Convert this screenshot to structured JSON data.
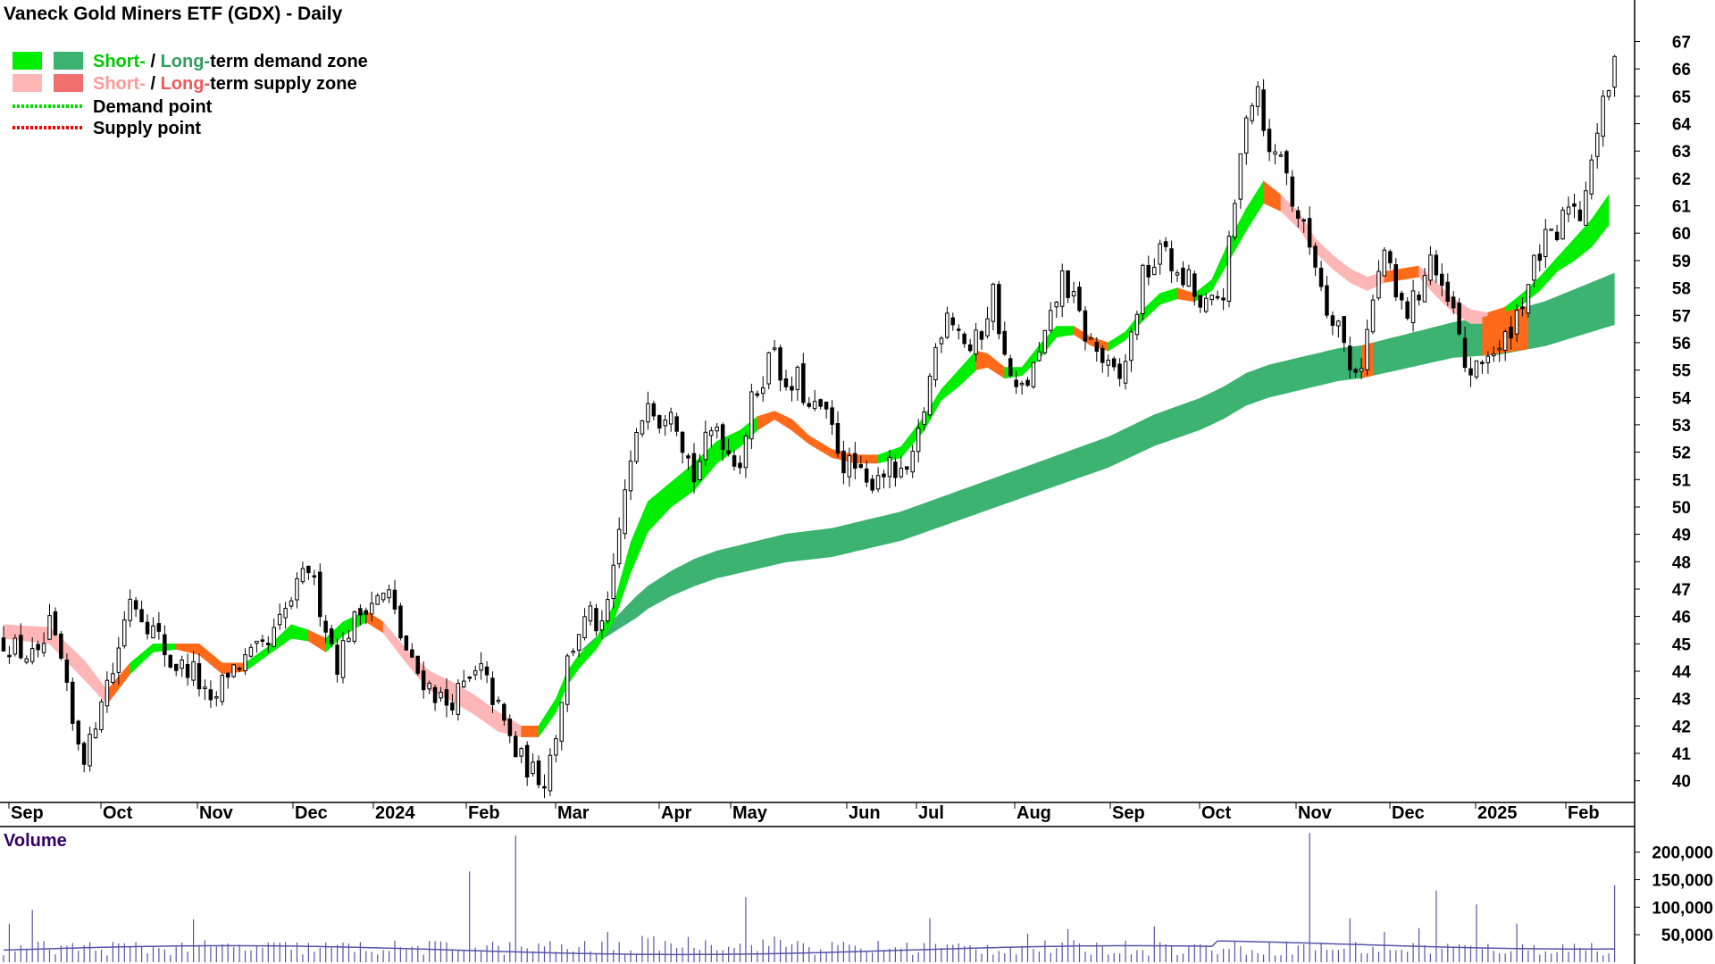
{
  "title": "Vaneck Gold Miners ETF (GDX) - Daily",
  "legend": {
    "short_prefix": "Short-",
    "slash": " / ",
    "long_prefix": "Long-",
    "demand_suffix": "term demand zone",
    "supply_suffix": "term supply zone",
    "demand_point": "Demand point",
    "supply_point": "Supply point"
  },
  "colors": {
    "short_demand": "#00ee00",
    "long_demand": "#3cb371",
    "short_supply": "#ffb6b6",
    "long_supply": "#f07070",
    "zone_orange": "#ff6a1a",
    "supply_point": "#ff0000",
    "volume": "#5555aa"
  },
  "volume_panel": {
    "title": "Volume",
    "ticks": [
      "200,000",
      "150,000",
      "100,000",
      "50,000"
    ],
    "tick_values": [
      200000,
      150000,
      100000,
      50000
    ],
    "max": 240000
  },
  "chart_data": {
    "type": "candlestick",
    "title": "Vaneck Gold Miners ETF (GDX) - Daily",
    "ylim": [
      39.5,
      67.8
    ],
    "y_ticks": [
      40,
      41,
      42,
      43,
      44,
      45,
      46,
      47,
      48,
      49,
      50,
      51,
      52,
      53,
      54,
      55,
      56,
      57,
      58,
      59,
      60,
      61,
      62,
      63,
      64,
      65,
      66,
      67
    ],
    "month_labels": [
      "Sep",
      "Oct",
      "Nov",
      "Dec",
      "2024",
      "Feb",
      "Mar",
      "Apr",
      "May",
      "Jun",
      "Jul",
      "Aug",
      "Sep",
      "Oct",
      "Nov",
      "Dec",
      "2025",
      "Feb"
    ],
    "close_path": [
      [
        0,
        45.1
      ],
      [
        3,
        44.7
      ],
      [
        6,
        44.4
      ],
      [
        8,
        45.6
      ],
      [
        10,
        44.3
      ],
      [
        12,
        42.0
      ],
      [
        14,
        41.0
      ],
      [
        15,
        41.3
      ],
      [
        17,
        43.2
      ],
      [
        19,
        44.0
      ],
      [
        22,
        46.8
      ],
      [
        25,
        45.8
      ],
      [
        27,
        45.2
      ],
      [
        29,
        44.3
      ],
      [
        33,
        44.0
      ],
      [
        36,
        42.6
      ],
      [
        39,
        44.0
      ],
      [
        42,
        44.4
      ],
      [
        46,
        44.9
      ],
      [
        50,
        46.6
      ],
      [
        53,
        47.8
      ],
      [
        56,
        45.7
      ],
      [
        58,
        44.3
      ],
      [
        60,
        45.5
      ],
      [
        63,
        46.5
      ],
      [
        67,
        46.8
      ],
      [
        69,
        45.3
      ],
      [
        71,
        44.2
      ],
      [
        73,
        43.7
      ],
      [
        75,
        43.2
      ],
      [
        77,
        42.8
      ],
      [
        80,
        43.4
      ],
      [
        83,
        44.0
      ],
      [
        86,
        42.6
      ],
      [
        89,
        41.0
      ],
      [
        92,
        40.3
      ],
      [
        94,
        40.1
      ],
      [
        96,
        41.8
      ],
      [
        98,
        44.4
      ],
      [
        100,
        45.5
      ],
      [
        102,
        46.0
      ],
      [
        104,
        45.4
      ],
      [
        106,
        47.5
      ],
      [
        108,
        50.6
      ],
      [
        110,
        52.4
      ],
      [
        112,
        54.2
      ],
      [
        114,
        53.2
      ],
      [
        116,
        53.9
      ],
      [
        118,
        52.4
      ],
      [
        120,
        51.1
      ],
      [
        122,
        52.3
      ],
      [
        124,
        53.0
      ],
      [
        126,
        52.0
      ],
      [
        128,
        51.7
      ],
      [
        130,
        53.8
      ],
      [
        132,
        54.8
      ],
      [
        134,
        56.0
      ],
      [
        136,
        54.0
      ],
      [
        138,
        54.7
      ],
      [
        140,
        53.5
      ],
      [
        142,
        53.6
      ],
      [
        144,
        52.8
      ],
      [
        146,
        51.6
      ],
      [
        148,
        51.4
      ],
      [
        150,
        50.7
      ],
      [
        152,
        51.3
      ],
      [
        154,
        51.4
      ],
      [
        156,
        51.0
      ],
      [
        158,
        51.6
      ],
      [
        160,
        53.6
      ],
      [
        162,
        55.8
      ],
      [
        164,
        57.3
      ],
      [
        166,
        56.5
      ],
      [
        168,
        55.7
      ],
      [
        170,
        56.4
      ],
      [
        172,
        57.9
      ],
      [
        174,
        55.4
      ],
      [
        176,
        54.1
      ],
      [
        178,
        54.6
      ],
      [
        180,
        55.5
      ],
      [
        182,
        56.8
      ],
      [
        184,
        58.4
      ],
      [
        186,
        57.5
      ],
      [
        188,
        56.3
      ],
      [
        190,
        55.7
      ],
      [
        192,
        55.0
      ],
      [
        194,
        54.6
      ],
      [
        196,
        56.2
      ],
      [
        198,
        58.4
      ],
      [
        200,
        58.9
      ],
      [
        202,
        59.6
      ],
      [
        204,
        58.2
      ],
      [
        206,
        58.3
      ],
      [
        208,
        57.2
      ],
      [
        210,
        57.4
      ],
      [
        212,
        57.9
      ],
      [
        214,
        61.0
      ],
      [
        216,
        64.5
      ],
      [
        218,
        65.4
      ],
      [
        220,
        62.8
      ],
      [
        222,
        63.0
      ],
      [
        224,
        61.2
      ],
      [
        226,
        60.1
      ],
      [
        228,
        59.0
      ],
      [
        230,
        57.3
      ],
      [
        232,
        56.8
      ],
      [
        234,
        55.0
      ],
      [
        236,
        55.3
      ],
      [
        238,
        57.5
      ],
      [
        240,
        59.4
      ],
      [
        242,
        57.6
      ],
      [
        244,
        57.1
      ],
      [
        246,
        57.9
      ],
      [
        248,
        59.2
      ],
      [
        250,
        57.7
      ],
      [
        252,
        57.1
      ],
      [
        254,
        55.1
      ],
      [
        256,
        54.9
      ],
      [
        258,
        55.7
      ],
      [
        260,
        55.6
      ],
      [
        262,
        56.6
      ],
      [
        264,
        57.6
      ],
      [
        266,
        58.8
      ],
      [
        268,
        59.7
      ],
      [
        270,
        59.8
      ],
      [
        272,
        61.2
      ],
      [
        274,
        60.7
      ],
      [
        276,
        62.9
      ],
      [
        278,
        64.6
      ],
      [
        280,
        66.1
      ]
    ],
    "short_term_zone": [
      [
        0,
        45.7,
        45.2,
        "s"
      ],
      [
        8,
        45.6,
        45.0,
        "s"
      ],
      [
        14,
        44.4,
        43.7,
        "s"
      ],
      [
        18,
        43.3,
        42.8,
        "s"
      ],
      [
        22,
        44.3,
        43.9,
        "s"
      ],
      [
        26,
        45.0,
        44.7,
        "d"
      ],
      [
        30,
        45.0,
        44.8,
        "d"
      ],
      [
        34,
        45.0,
        44.6,
        "s"
      ],
      [
        38,
        44.3,
        43.9,
        "s"
      ],
      [
        42,
        44.3,
        44.0,
        "s"
      ],
      [
        46,
        44.9,
        44.6,
        "d"
      ],
      [
        50,
        45.7,
        45.2,
        "d"
      ],
      [
        53,
        45.5,
        45.1,
        "d"
      ],
      [
        56,
        45.2,
        44.7,
        "s"
      ],
      [
        59,
        45.8,
        45.3,
        "d"
      ],
      [
        63,
        46.2,
        45.8,
        "d"
      ],
      [
        66,
        45.8,
        45.4,
        "s"
      ],
      [
        70,
        44.8,
        44.3,
        "s"
      ],
      [
        74,
        44.0,
        43.3,
        "s"
      ],
      [
        78,
        43.6,
        42.9,
        "s"
      ],
      [
        82,
        43.1,
        42.4,
        "s"
      ],
      [
        86,
        42.5,
        41.8,
        "s"
      ],
      [
        90,
        42.0,
        41.6,
        "s"
      ],
      [
        93,
        42.0,
        41.6,
        "s"
      ],
      [
        96,
        43.0,
        42.5,
        "d"
      ],
      [
        98,
        44.0,
        43.5,
        "d"
      ],
      [
        100,
        44.6,
        44.1,
        "d"
      ],
      [
        103,
        45.2,
        44.8,
        "d"
      ],
      [
        106,
        46.4,
        45.8,
        "d"
      ],
      [
        109,
        48.7,
        47.6,
        "d"
      ],
      [
        112,
        50.2,
        49.1,
        "d"
      ],
      [
        116,
        50.9,
        50.0,
        "d"
      ],
      [
        120,
        51.6,
        50.6,
        "d"
      ],
      [
        124,
        52.4,
        51.6,
        "d"
      ],
      [
        128,
        52.8,
        52.2,
        "d"
      ],
      [
        131,
        53.3,
        52.8,
        "d"
      ],
      [
        134,
        53.5,
        53.2,
        "s"
      ],
      [
        137,
        53.2,
        52.8,
        "s"
      ],
      [
        140,
        52.6,
        52.3,
        "s"
      ],
      [
        144,
        52.1,
        51.8,
        "s"
      ],
      [
        148,
        51.9,
        51.6,
        "s"
      ],
      [
        152,
        51.9,
        51.6,
        "s"
      ],
      [
        156,
        52.2,
        51.8,
        "d"
      ],
      [
        160,
        53.3,
        52.8,
        "d"
      ],
      [
        163,
        54.3,
        53.9,
        "d"
      ],
      [
        166,
        55.0,
        54.4,
        "d"
      ],
      [
        169,
        55.7,
        55.0,
        "d"
      ],
      [
        171,
        55.6,
        55.1,
        "s"
      ],
      [
        174,
        55.1,
        54.7,
        "s"
      ],
      [
        177,
        55.1,
        54.8,
        "d"
      ],
      [
        180,
        55.9,
        55.4,
        "d"
      ],
      [
        183,
        56.6,
        56.2,
        "d"
      ],
      [
        186,
        56.6,
        56.3,
        "d"
      ],
      [
        189,
        56.2,
        55.9,
        "s"
      ],
      [
        192,
        56.0,
        55.7,
        "s"
      ],
      [
        195,
        56.4,
        56.1,
        "d"
      ],
      [
        198,
        57.2,
        56.8,
        "d"
      ],
      [
        201,
        57.8,
        57.4,
        "d"
      ],
      [
        204,
        58.0,
        57.6,
        "d"
      ],
      [
        207,
        57.8,
        57.5,
        "s"
      ],
      [
        210,
        58.3,
        57.9,
        "d"
      ],
      [
        213,
        59.7,
        59.0,
        "d"
      ],
      [
        216,
        60.9,
        60.1,
        "d"
      ],
      [
        219,
        61.9,
        61.1,
        "d"
      ],
      [
        222,
        61.4,
        60.8,
        "s"
      ],
      [
        225,
        60.8,
        60.2,
        "s"
      ],
      [
        228,
        59.8,
        59.3,
        "s"
      ],
      [
        231,
        59.2,
        58.7,
        "s"
      ],
      [
        234,
        58.7,
        58.2,
        "s"
      ],
      [
        237,
        58.4,
        57.9,
        "s"
      ],
      [
        240,
        58.6,
        58.2,
        "s"
      ],
      [
        243,
        58.7,
        58.3,
        "s"
      ],
      [
        246,
        58.8,
        58.4,
        "s"
      ],
      [
        249,
        58.2,
        57.7,
        "s"
      ],
      [
        252,
        57.6,
        57.1,
        "s"
      ],
      [
        255,
        57.2,
        56.7,
        "s"
      ],
      [
        258,
        57.1,
        56.7,
        "s"
      ],
      [
        261,
        57.3,
        56.9,
        "s"
      ],
      [
        264,
        57.8,
        57.4,
        "d"
      ],
      [
        267,
        58.4,
        57.9,
        "d"
      ],
      [
        270,
        59.1,
        58.6,
        "d"
      ],
      [
        273,
        59.8,
        59.0,
        "d"
      ],
      [
        276,
        60.5,
        59.5,
        "d"
      ],
      [
        279,
        61.4,
        60.3,
        "d"
      ]
    ],
    "long_term_zone": [
      [
        100,
        44.7
      ],
      [
        104,
        45.3
      ],
      [
        108,
        46.0
      ],
      [
        112,
        46.7
      ],
      [
        116,
        47.2
      ],
      [
        120,
        47.6
      ],
      [
        124,
        47.9
      ],
      [
        128,
        48.1
      ],
      [
        132,
        48.3
      ],
      [
        136,
        48.5
      ],
      [
        140,
        48.6
      ],
      [
        144,
        48.7
      ],
      [
        148,
        48.9
      ],
      [
        152,
        49.1
      ],
      [
        156,
        49.3
      ],
      [
        160,
        49.6
      ],
      [
        164,
        49.9
      ],
      [
        168,
        50.2
      ],
      [
        172,
        50.5
      ],
      [
        176,
        50.8
      ],
      [
        180,
        51.1
      ],
      [
        184,
        51.4
      ],
      [
        188,
        51.7
      ],
      [
        192,
        52.0
      ],
      [
        196,
        52.4
      ],
      [
        200,
        52.8
      ],
      [
        204,
        53.1
      ],
      [
        208,
        53.4
      ],
      [
        212,
        53.8
      ],
      [
        216,
        54.3
      ],
      [
        220,
        54.6
      ],
      [
        224,
        54.8
      ],
      [
        228,
        55.0
      ],
      [
        232,
        55.2
      ],
      [
        236,
        55.3
      ],
      [
        240,
        55.5
      ],
      [
        244,
        55.7
      ],
      [
        248,
        55.9
      ],
      [
        252,
        56.1
      ],
      [
        256,
        56.2
      ],
      [
        260,
        56.3
      ],
      [
        264,
        56.5
      ],
      [
        268,
        56.7
      ],
      [
        272,
        57.0
      ],
      [
        276,
        57.3
      ],
      [
        280,
        57.6
      ]
    ],
    "long_term_width": [
      [
        100,
        0.0
      ],
      [
        104,
        0.3
      ],
      [
        110,
        0.8
      ],
      [
        120,
        1.0
      ],
      [
        140,
        1.05
      ],
      [
        180,
        1.1
      ],
      [
        220,
        1.2
      ],
      [
        236,
        1.2
      ],
      [
        252,
        1.3
      ],
      [
        266,
        1.6
      ],
      [
        280,
        1.9
      ]
    ],
    "orange_blocks": [
      [
        236,
        238
      ],
      [
        257,
        265
      ]
    ]
  }
}
